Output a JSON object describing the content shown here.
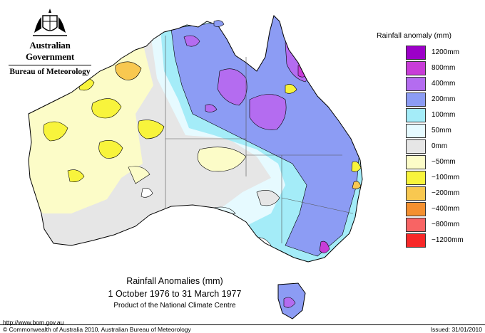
{
  "header": {
    "government": "Australian Government",
    "bureau": "Bureau of Meteorology"
  },
  "map": {
    "title": "Rainfall Anomalies (mm)",
    "period": "1 October 1976 to 31 March 1977",
    "credit": "Product of the National Climate Centre",
    "region": "Australia"
  },
  "legend": {
    "title": "Rainfall anomaly (mm)",
    "items": [
      {
        "label": "1200mm",
        "color": "#9c00c8"
      },
      {
        "label": "800mm",
        "color": "#c83cd8"
      },
      {
        "label": "400mm",
        "color": "#b46cf0"
      },
      {
        "label": "200mm",
        "color": "#8c9cf4"
      },
      {
        "label": "100mm",
        "color": "#a4ecf8"
      },
      {
        "label": "50mm",
        "color": "#e6faff"
      },
      {
        "label": "0mm",
        "color": "#e6e6e6"
      },
      {
        "label": "−50mm",
        "color": "#fcfcc8"
      },
      {
        "label": "−100mm",
        "color": "#f8f43c"
      },
      {
        "label": "−200mm",
        "color": "#f8c850"
      },
      {
        "label": "−400mm",
        "color": "#f49030"
      },
      {
        "label": "−800mm",
        "color": "#f86464"
      },
      {
        "label": "−1200mm",
        "color": "#f82828"
      }
    ]
  },
  "footer": {
    "url": "http://www.bom.gov.au",
    "copyright": "© Commonwealth of Australia 2010, Australian Bureau of Meteorology",
    "issued": "Issued: 31/01/2010"
  }
}
